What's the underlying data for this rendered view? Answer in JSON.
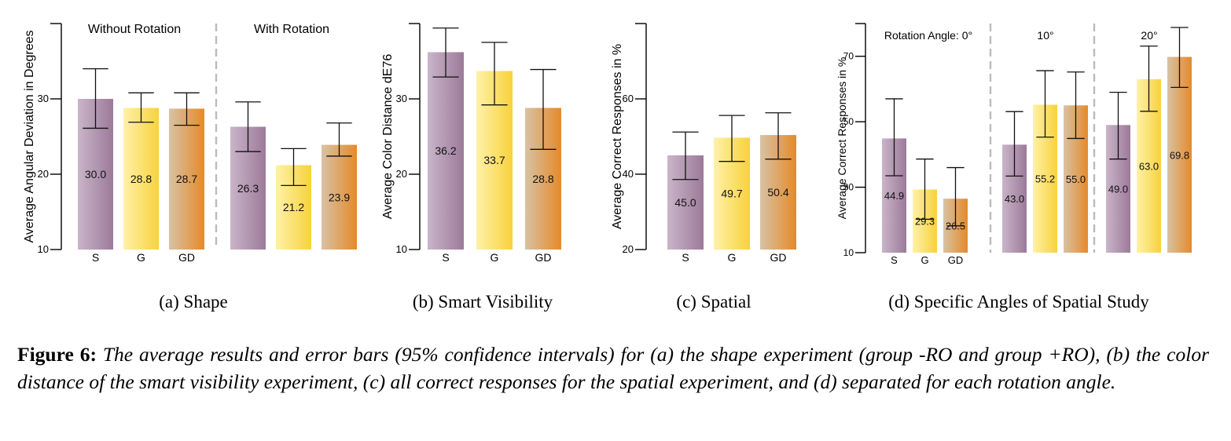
{
  "colors": {
    "S": [
      "#c9b5c9",
      "#9c7a99"
    ],
    "G": [
      "#fff1a8",
      "#f7d23c"
    ],
    "GD": [
      "#d8c2a4",
      "#e58a2a"
    ],
    "axis": "#000000",
    "divider": "#bbbbbb"
  },
  "caption": {
    "lead": "Figure 6:",
    "body": "The average results and error bars (95% confidence intervals) for (a) the shape experiment (group -RO and group +RO), (b) the color distance of the smart visibility experiment, (c) all correct responses for the spatial experiment, and (d) separated for each rotation angle."
  },
  "chart_data": [
    {
      "type": "bar",
      "subcaption": "(a)  Shape",
      "ylabel": "Average Angular Deviation in Degrees",
      "ylim": [
        10,
        40
      ],
      "yticks": [
        10,
        20,
        30
      ],
      "categories": [
        "S",
        "G",
        "GD"
      ],
      "groups": [
        {
          "label": "Without Rotation",
          "values": [
            30.0,
            28.8,
            28.7
          ],
          "labels": [
            "30.0",
            "28.8",
            "28.7"
          ],
          "ci_low": [
            26.1,
            26.9,
            26.5
          ],
          "ci_high": [
            34.0,
            30.8,
            30.8
          ]
        },
        {
          "label": "With Rotation",
          "values": [
            26.3,
            21.2,
            23.9
          ],
          "labels": [
            "26.3",
            "21.2",
            "23.9"
          ],
          "ci_low": [
            23.0,
            18.5,
            22.4
          ],
          "ci_high": [
            29.6,
            23.4,
            26.8
          ]
        }
      ]
    },
    {
      "type": "bar",
      "subcaption": "(b)  Smart Visibility",
      "ylabel": "Average Color Distance dE76",
      "ylim": [
        10,
        40
      ],
      "yticks": [
        10,
        20,
        30
      ],
      "categories": [
        "S",
        "G",
        "GD"
      ],
      "groups": [
        {
          "label": "",
          "values": [
            36.2,
            33.7,
            28.8
          ],
          "labels": [
            "36.2",
            "33.7",
            "28.8"
          ],
          "ci_low": [
            32.9,
            29.2,
            23.3
          ],
          "ci_high": [
            39.4,
            37.5,
            33.9
          ]
        }
      ]
    },
    {
      "type": "bar",
      "subcaption": "(c)  Spatial",
      "ylabel": "Average Correct Responses in %",
      "ylim": [
        20,
        80
      ],
      "yticks": [
        20,
        40,
        60
      ],
      "categories": [
        "S",
        "G",
        "GD"
      ],
      "groups": [
        {
          "label": "",
          "values": [
            45.0,
            49.7,
            50.4
          ],
          "labels": [
            "45.0",
            "49.7",
            "50.4"
          ],
          "ci_low": [
            38.6,
            43.4,
            44.0
          ],
          "ci_high": [
            51.2,
            55.6,
            56.3
          ]
        }
      ]
    },
    {
      "type": "bar",
      "subcaption": "(d)  Specific Angles of Spatial Study",
      "ylabel": "Average Correct Responses in %",
      "ylim": [
        10,
        80
      ],
      "yticks": [
        10,
        30,
        50,
        70
      ],
      "categories": [
        "S",
        "G",
        "GD"
      ],
      "groups": [
        {
          "label": "Rotation Angle:  0°",
          "values": [
            44.9,
            29.3,
            26.5
          ],
          "labels": [
            "44.9",
            "29.3",
            "26.5"
          ],
          "ci_low": [
            33.5,
            20.2,
            18.2
          ],
          "ci_high": [
            57.0,
            38.6,
            36.0
          ]
        },
        {
          "label": "10°",
          "values": [
            43.0,
            55.2,
            55.0
          ],
          "labels": [
            "43.0",
            "55.2",
            "55.0"
          ],
          "ci_low": [
            33.4,
            45.3,
            44.9
          ],
          "ci_high": [
            53.1,
            65.6,
            65.2
          ]
        },
        {
          "label": "20°",
          "values": [
            49.0,
            63.0,
            69.8
          ],
          "labels": [
            "49.0",
            "63.0",
            "69.8"
          ],
          "ci_low": [
            38.6,
            53.2,
            60.5
          ],
          "ci_high": [
            59.0,
            73.1,
            78.8
          ]
        }
      ]
    }
  ]
}
